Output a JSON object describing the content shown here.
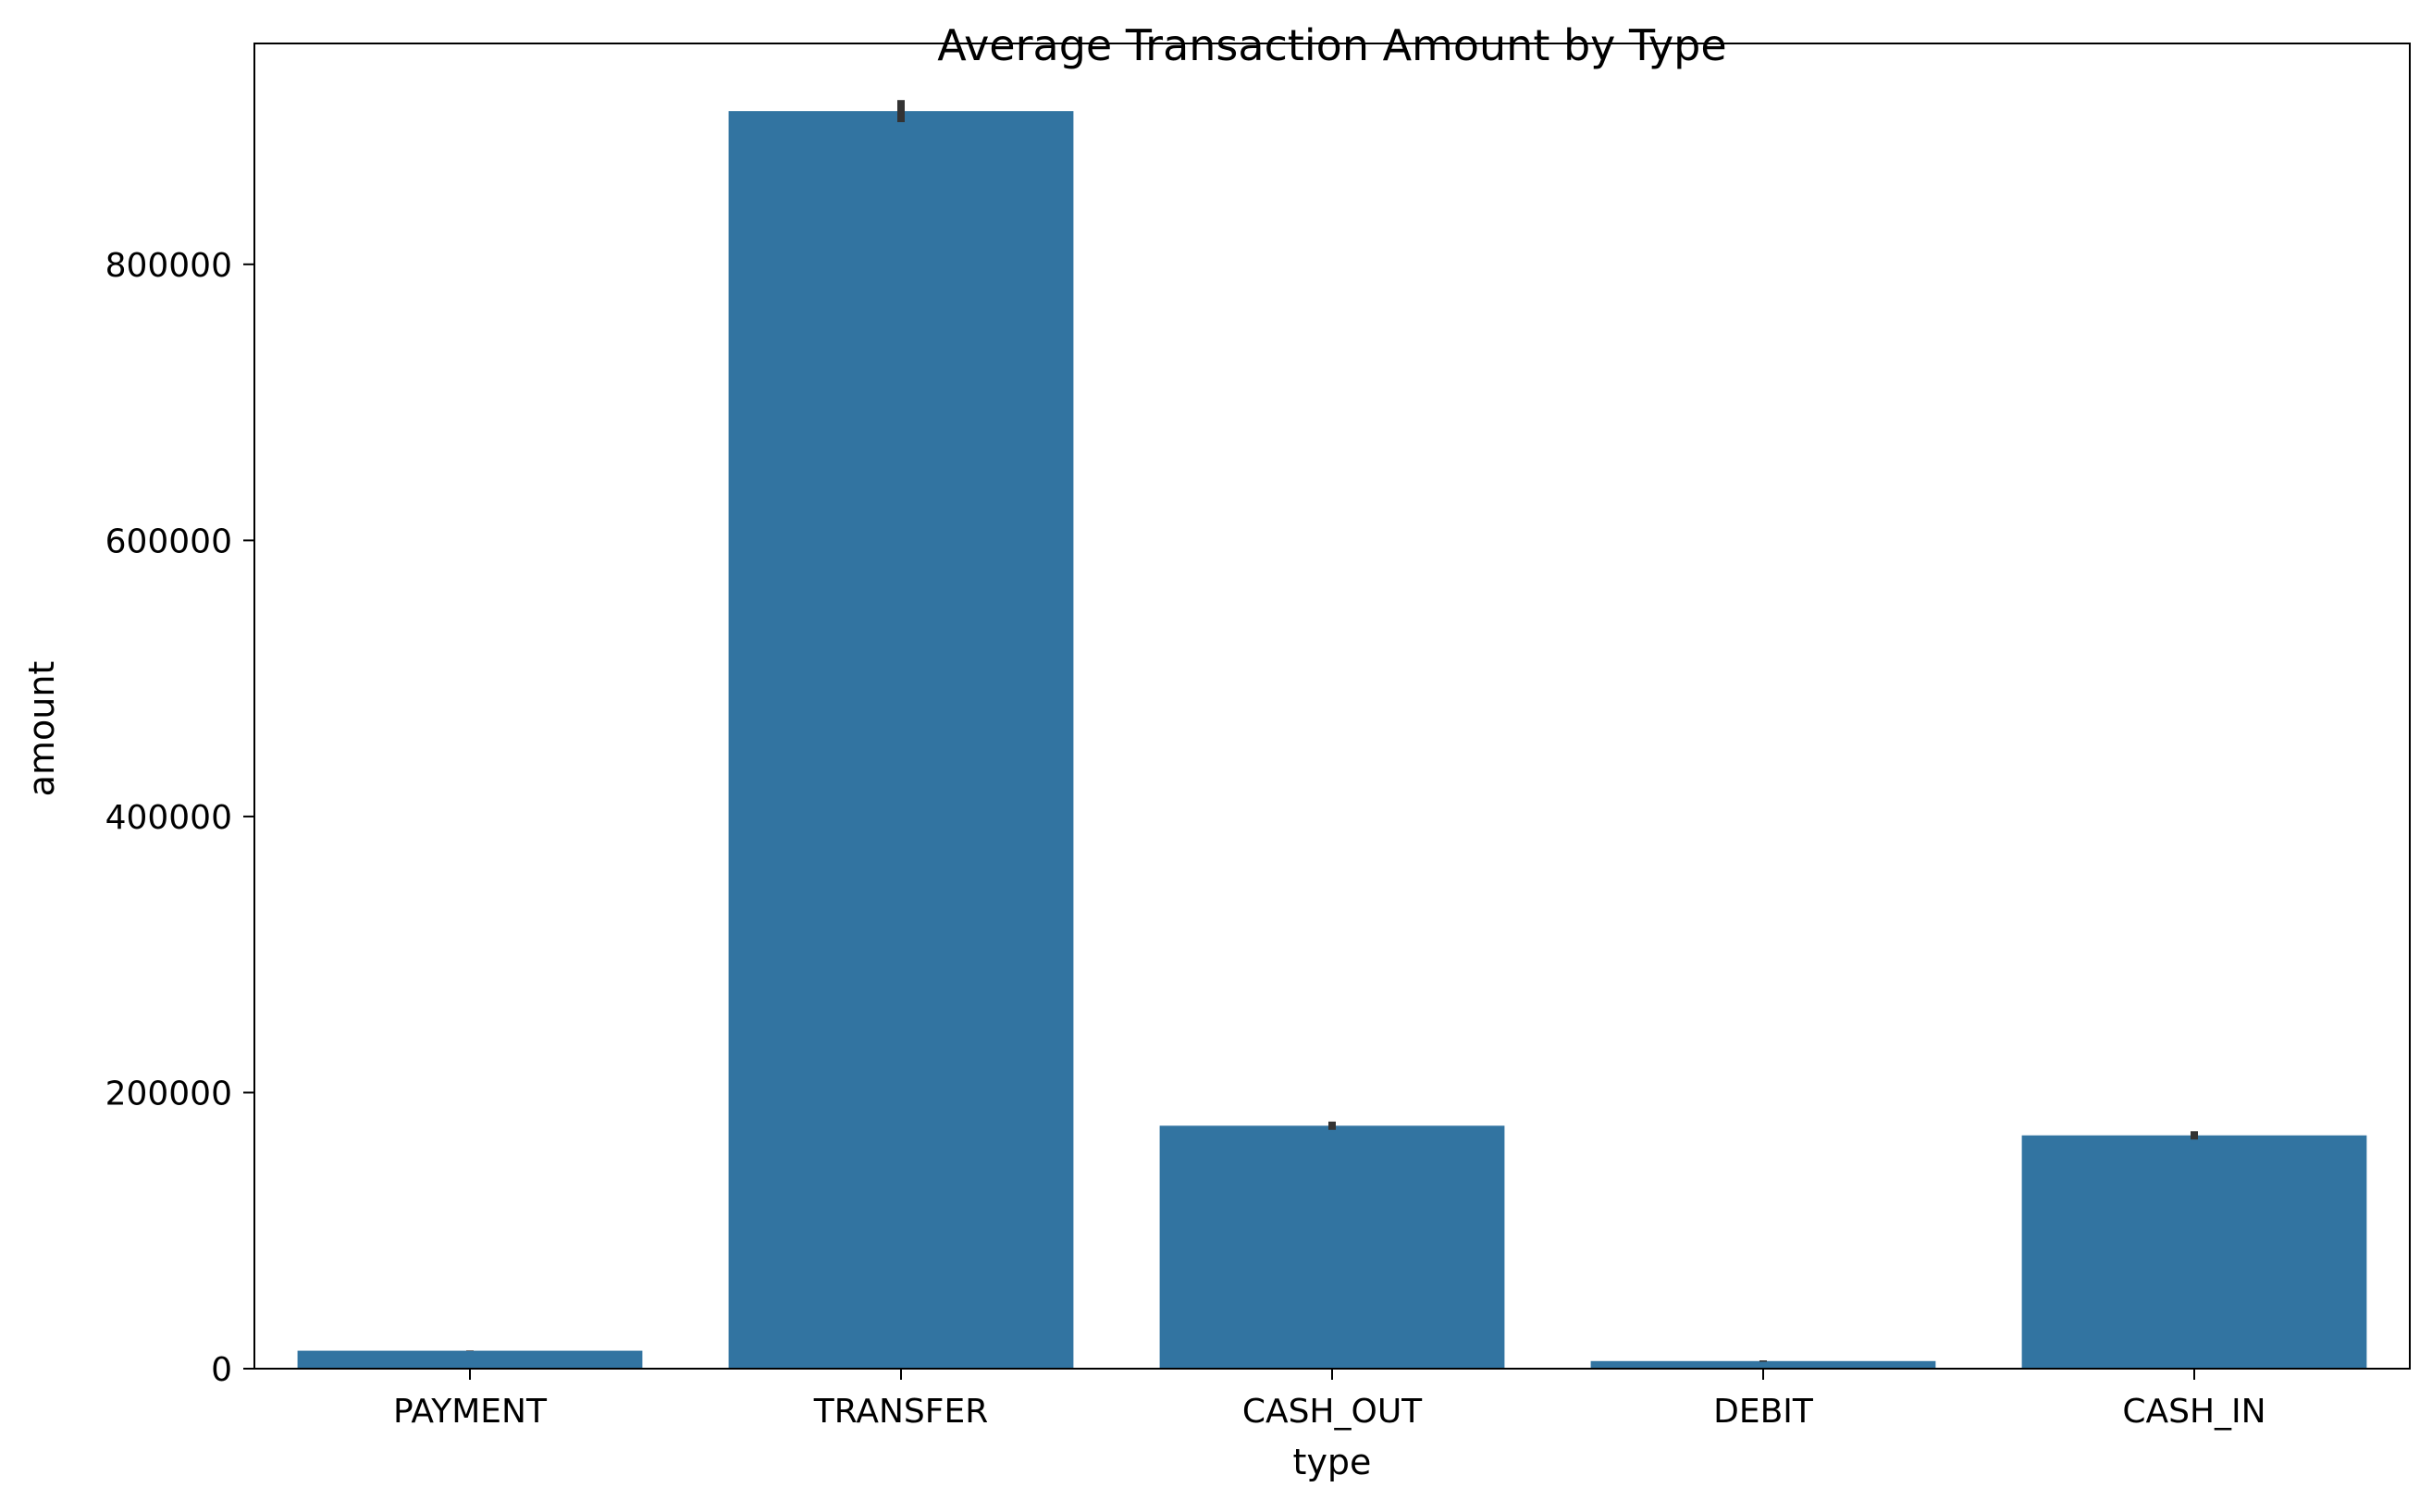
{
  "chart_data": {
    "type": "bar",
    "title": "Average Transaction Amount by Type",
    "xlabel": "type",
    "ylabel": "amount",
    "categories": [
      "PAYMENT",
      "TRANSFER",
      "CASH_OUT",
      "DEBIT",
      "CASH_IN"
    ],
    "values": [
      13000,
      911000,
      176000,
      5500,
      169000
    ],
    "error_bars": [
      [
        12800,
        13200
      ],
      [
        903000,
        919000
      ],
      [
        173000,
        179000
      ],
      [
        5000,
        6000
      ],
      [
        166000,
        172000
      ]
    ],
    "ylim": [
      0,
      960000
    ],
    "yticks": [
      0,
      200000,
      400000,
      600000,
      800000
    ],
    "ytick_labels": [
      "0",
      "200000",
      "400000",
      "600000",
      "800000"
    ],
    "grid": false,
    "colors": {
      "bar": "#3274a1",
      "error_bar": "#333333",
      "axis": "#000000"
    }
  }
}
